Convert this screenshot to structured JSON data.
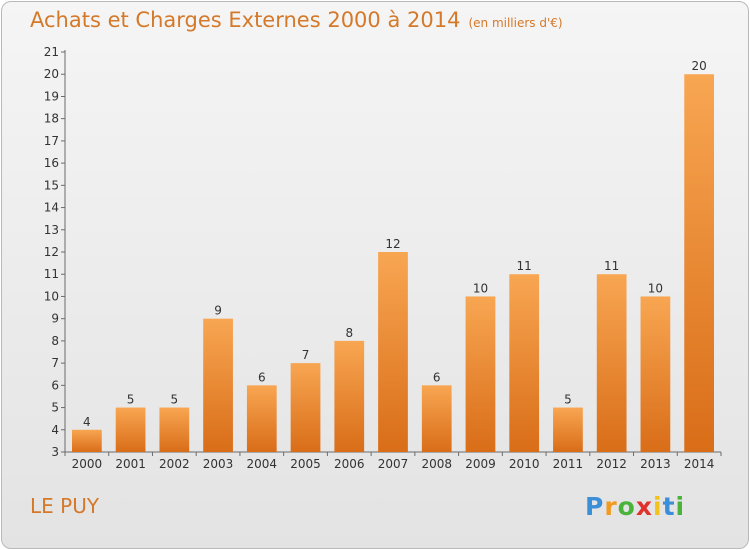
{
  "header": {
    "title": "Achats et Charges Externes 2000 à 2014",
    "unit": "(en milliers d'€)"
  },
  "footer": {
    "place": "LE PUY",
    "logo_letters": [
      "P",
      "r",
      "o",
      "x",
      "i",
      "t",
      "i"
    ],
    "logo_colors": [
      "#3b8fd9",
      "#f29a1f",
      "#49b33c",
      "#e0322d",
      "#f2c31a",
      "#3b8fd9",
      "#49b33c"
    ]
  },
  "colors": {
    "bar_light": "#f8a652",
    "bar_dark": "#d96d18",
    "accent": "#d4792a"
  },
  "chart_data": {
    "type": "bar",
    "title": "Achats et Charges Externes 2000 à 2014",
    "subtitle": "(en milliers d'€)",
    "xlabel": "",
    "ylabel": "",
    "categories": [
      "2000",
      "2001",
      "2002",
      "2003",
      "2004",
      "2005",
      "2006",
      "2007",
      "2008",
      "2009",
      "2010",
      "2011",
      "2012",
      "2013",
      "2014"
    ],
    "values": [
      4,
      5,
      5,
      9,
      6,
      7,
      8,
      12,
      6,
      10,
      11,
      5,
      11,
      10,
      20
    ],
    "data_labels": [
      "4",
      "5",
      "5",
      "9",
      "6",
      "7",
      "8",
      "12",
      "6",
      "10",
      "11",
      "5",
      "11",
      "10",
      "20"
    ],
    "ylim": [
      3,
      21
    ],
    "yticks": [
      "3",
      "4",
      "5",
      "6",
      "7",
      "8",
      "9",
      "10",
      "11",
      "12",
      "13",
      "14",
      "15",
      "16",
      "17",
      "18",
      "19",
      "20",
      "21"
    ],
    "grid": false,
    "legend": "none"
  }
}
